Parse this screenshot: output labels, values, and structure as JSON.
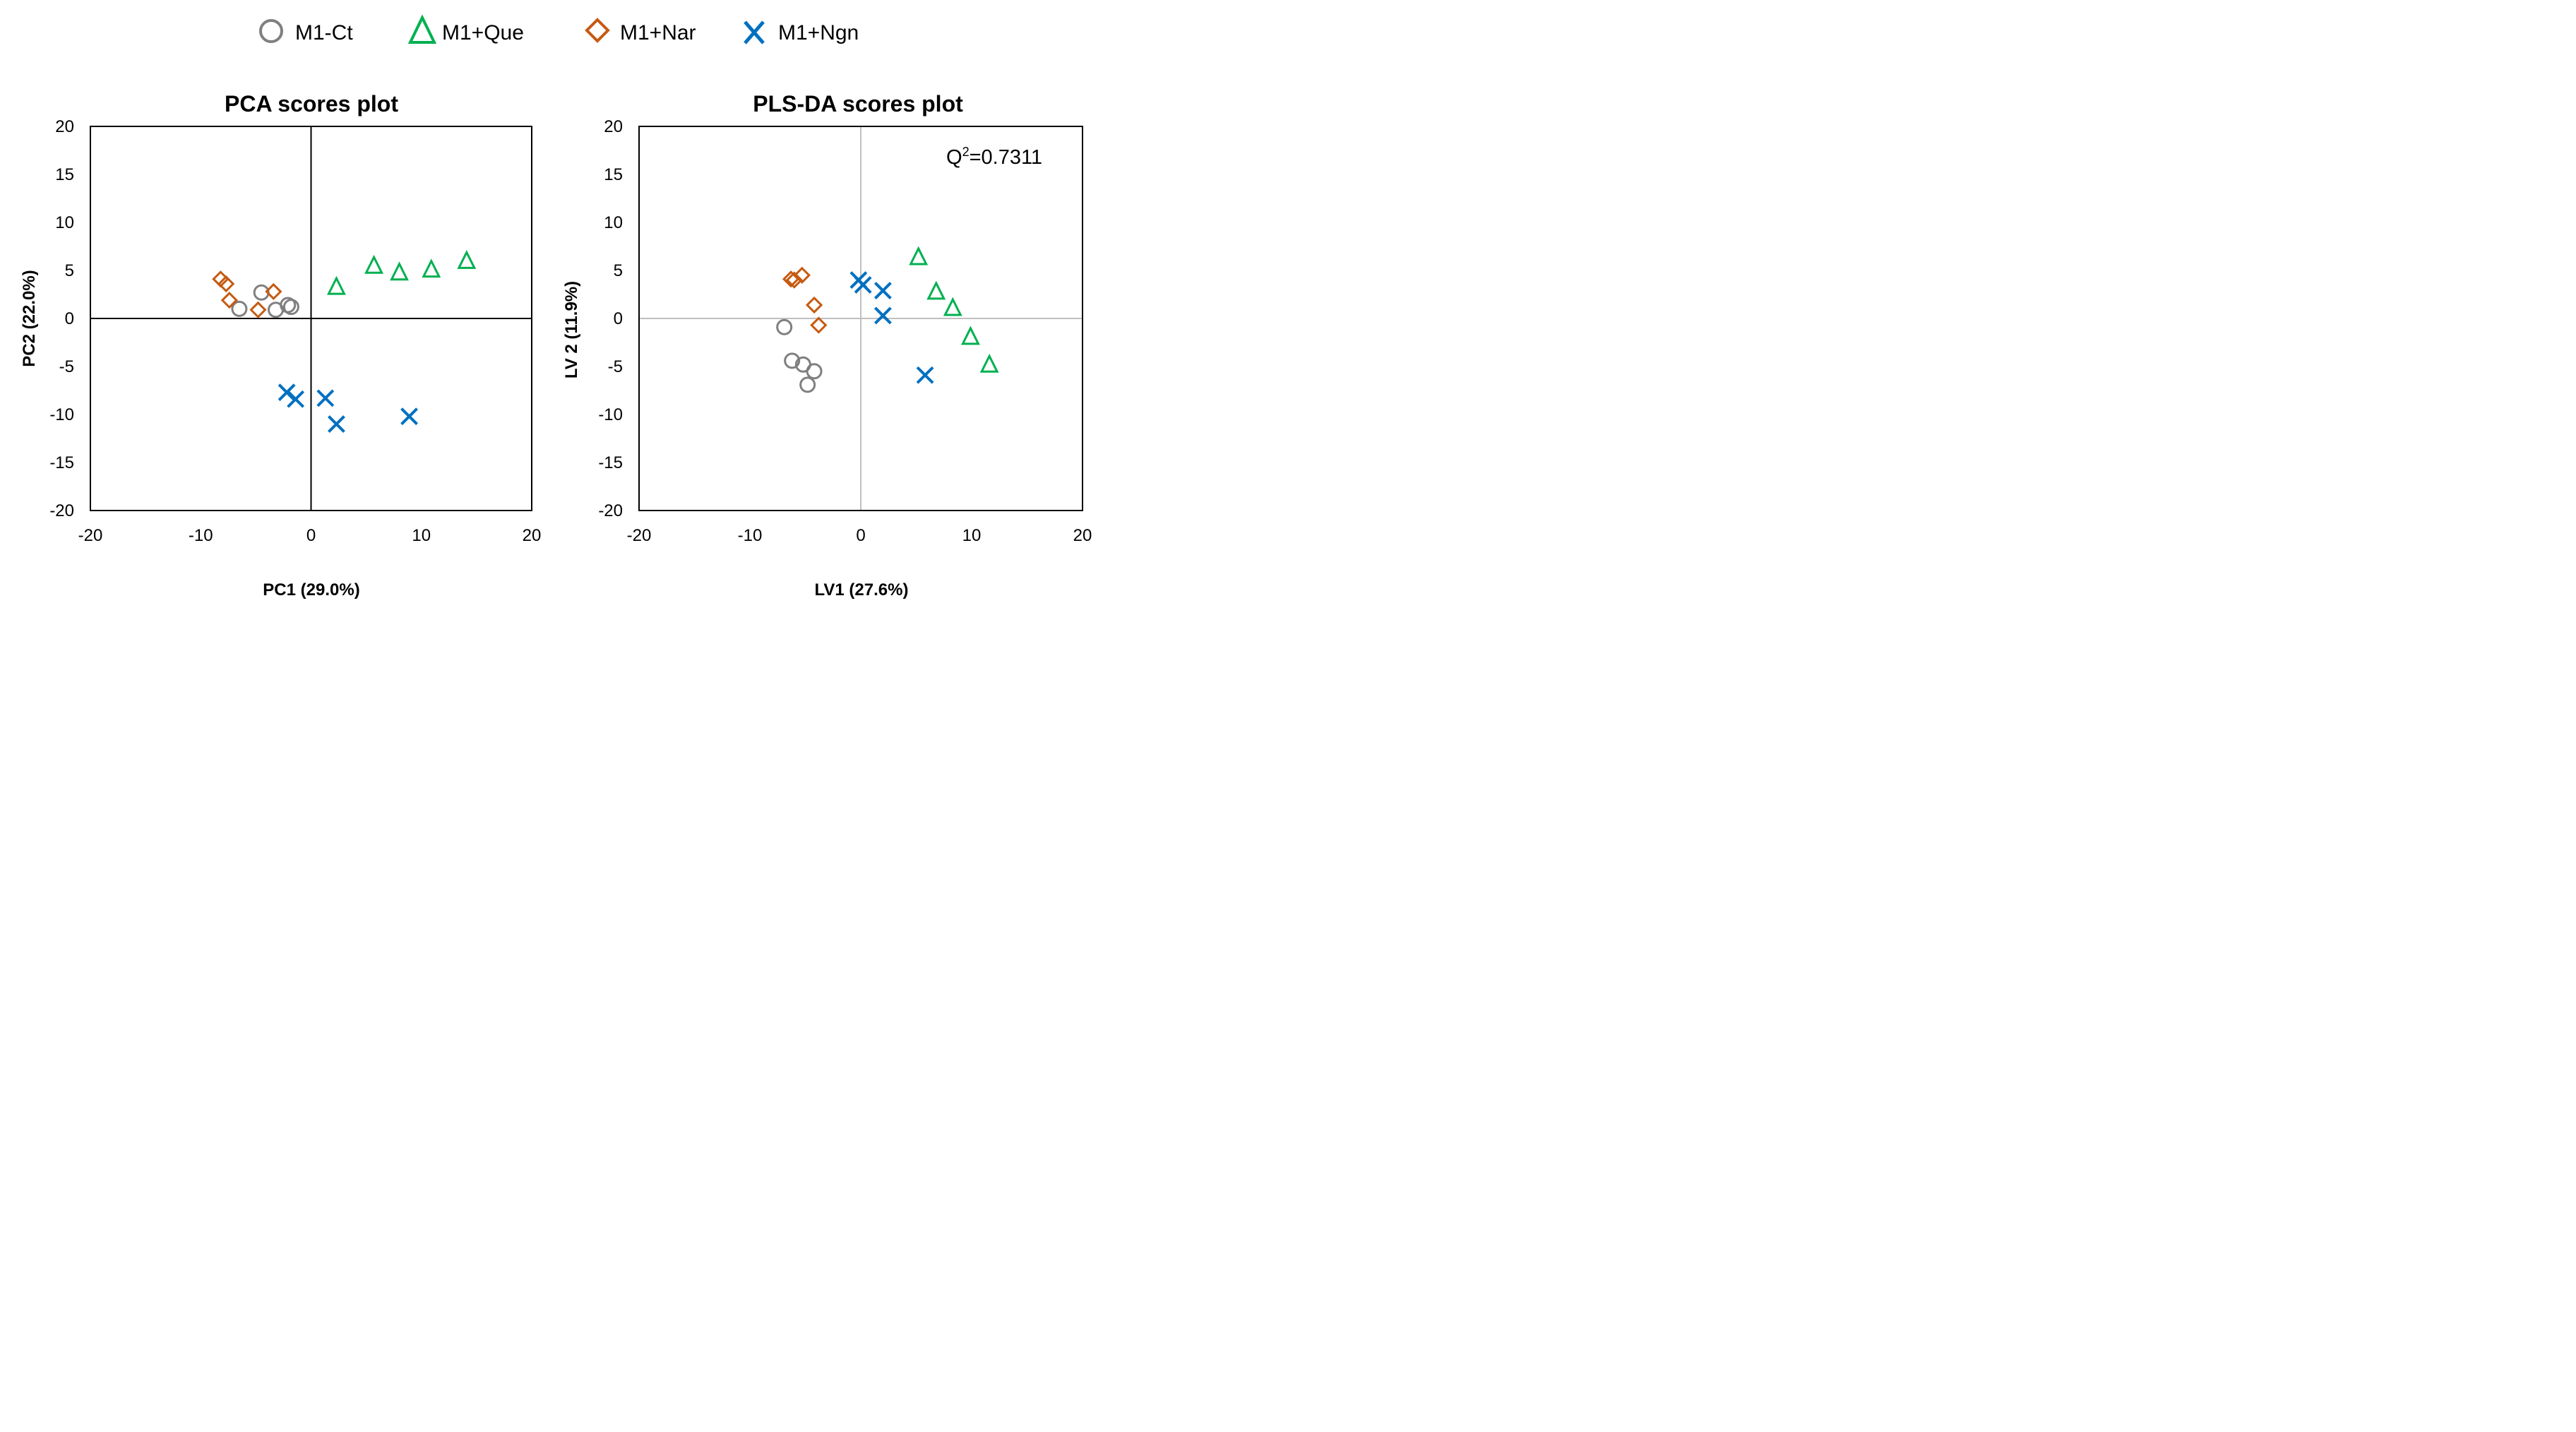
{
  "legend": [
    {
      "label": "M1-Ct",
      "marker": "circle-icon",
      "color": "#7f7f7f"
    },
    {
      "label": "M1+Que",
      "marker": "triangle-icon",
      "color": "#00b050"
    },
    {
      "label": "M1+Nar",
      "marker": "diamond-icon",
      "color": "#c55a11"
    },
    {
      "label": "M1+Ngn",
      "marker": "x-icon",
      "color": "#0070c0"
    }
  ],
  "chart_data": [
    {
      "type": "scatter",
      "title": "PCA scores plot",
      "xlabel": "PC1 (29.0%)",
      "ylabel": "PC2 (22.0%)",
      "xlim": [
        -20,
        20
      ],
      "ylim": [
        -20,
        20
      ],
      "xticks": [
        "-20",
        "-10",
        "0",
        "10",
        "20"
      ],
      "yticks": [
        "20",
        "15",
        "10",
        "5",
        "0",
        "-5",
        "-10",
        "-15",
        "-20"
      ],
      "zero_line_color": "#000000",
      "series": [
        {
          "name": "M1-Ct",
          "points": [
            [
              -6.5,
              1.0
            ],
            [
              -4.5,
              2.7
            ],
            [
              -3.2,
              0.9
            ],
            [
              -2.1,
              1.4
            ],
            [
              -1.8,
              1.2
            ]
          ]
        },
        {
          "name": "M1+Que",
          "points": [
            [
              2.3,
              3.3
            ],
            [
              5.7,
              5.5
            ],
            [
              8.0,
              4.8
            ],
            [
              10.9,
              5.1
            ],
            [
              14.1,
              6.0
            ]
          ]
        },
        {
          "name": "M1+Nar",
          "points": [
            [
              -8.2,
              4.1
            ],
            [
              -7.7,
              3.6
            ],
            [
              -7.4,
              1.9
            ],
            [
              -4.8,
              0.9
            ],
            [
              -3.4,
              2.8
            ]
          ]
        },
        {
          "name": "M1+Ngn",
          "points": [
            [
              -2.2,
              -7.7
            ],
            [
              -1.4,
              -8.4
            ],
            [
              1.3,
              -8.3
            ],
            [
              2.3,
              -11.0
            ],
            [
              8.9,
              -10.2
            ]
          ]
        }
      ]
    },
    {
      "type": "scatter",
      "title": "PLS-DA scores plot",
      "xlabel": "LV1 (27.6%)",
      "ylabel": "LV 2 (11.9%)",
      "xlim": [
        -20,
        20
      ],
      "ylim": [
        -20,
        20
      ],
      "xticks": [
        "-20",
        "-10",
        "0",
        "10",
        "20"
      ],
      "yticks": [
        "20",
        "15",
        "10",
        "5",
        "0",
        "-5",
        "-10",
        "-15",
        "-20"
      ],
      "zero_line_color": "#bfbfbf",
      "annotation": {
        "base": "Q",
        "sup": "2",
        "rest": "=0.7311"
      },
      "series": [
        {
          "name": "M1-Ct",
          "points": [
            [
              -6.9,
              -0.9
            ],
            [
              -6.2,
              -4.4
            ],
            [
              -5.2,
              -4.8
            ],
            [
              -4.8,
              -6.9
            ],
            [
              -4.2,
              -5.5
            ]
          ]
        },
        {
          "name": "M1+Que",
          "points": [
            [
              5.2,
              6.4
            ],
            [
              6.8,
              2.8
            ],
            [
              8.3,
              1.1
            ],
            [
              9.9,
              -1.9
            ],
            [
              11.6,
              -4.8
            ]
          ]
        },
        {
          "name": "M1+Nar",
          "points": [
            [
              -6.3,
              4.1
            ],
            [
              -6.0,
              4.0
            ],
            [
              -5.3,
              4.5
            ],
            [
              -4.2,
              1.4
            ],
            [
              -3.8,
              -0.7
            ]
          ]
        },
        {
          "name": "M1+Ngn",
          "points": [
            [
              -0.2,
              4.0
            ],
            [
              0.2,
              3.5
            ],
            [
              2.0,
              2.9
            ],
            [
              2.0,
              0.3
            ],
            [
              5.8,
              -5.9
            ]
          ]
        }
      ]
    }
  ]
}
